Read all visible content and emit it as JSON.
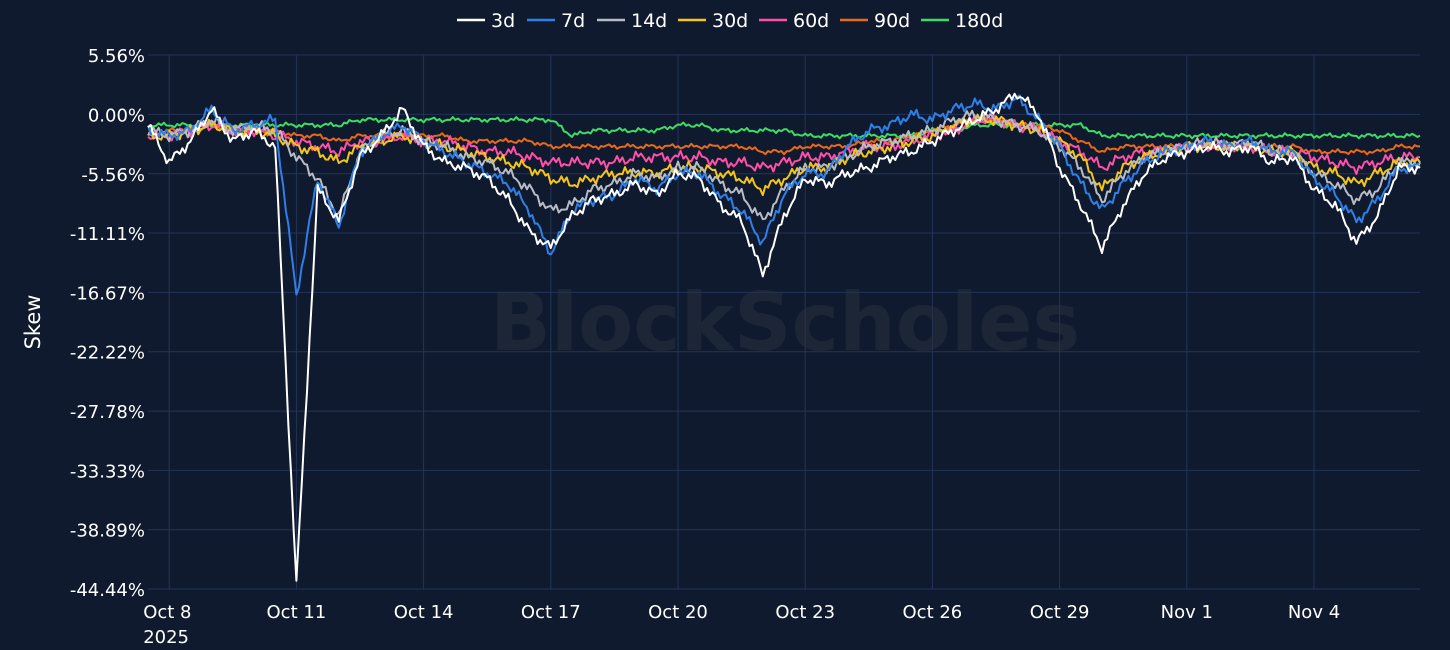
{
  "colors": {
    "background": "#0f1a2e",
    "grid": "#223459",
    "text": "#ffffff",
    "watermark": "#2a3040"
  },
  "watermark": "BlockScholes",
  "chart_data": {
    "type": "line",
    "title": "",
    "xlabel": "",
    "ylabel": "Skew",
    "legend_position": "top-center",
    "grid": true,
    "x_range": [
      "2025-10-07T12:00",
      "2025-11-06T12:00"
    ],
    "ylim": [
      -44.44,
      5.56
    ],
    "y_ticks": [
      5.56,
      0.0,
      -5.56,
      -11.11,
      -16.67,
      -22.22,
      -27.78,
      -33.33,
      -38.89,
      -44.44
    ],
    "y_tick_labels": [
      "5.56%",
      "0.00%",
      "-5.56%",
      "-11.11%",
      "-16.67%",
      "-22.22%",
      "-27.78%",
      "-33.33%",
      "-38.89%",
      "-44.44%"
    ],
    "x_ticks": [
      {
        "date": "2025-10-08",
        "label": "Oct 8",
        "sublabel": "2025"
      },
      {
        "date": "2025-10-11",
        "label": "Oct 11"
      },
      {
        "date": "2025-10-14",
        "label": "Oct 14"
      },
      {
        "date": "2025-10-17",
        "label": "Oct 17"
      },
      {
        "date": "2025-10-20",
        "label": "Oct 20"
      },
      {
        "date": "2025-10-23",
        "label": "Oct 23"
      },
      {
        "date": "2025-10-26",
        "label": "Oct 26"
      },
      {
        "date": "2025-10-29",
        "label": "Oct 29"
      },
      {
        "date": "2025-11-01",
        "label": "Nov 1"
      },
      {
        "date": "2025-11-04",
        "label": "Nov 4"
      }
    ],
    "x": [
      "2025-10-07T12:00",
      "2025-10-08T00:00",
      "2025-10-08T12:00",
      "2025-10-09T00:00",
      "2025-10-09T12:00",
      "2025-10-10T00:00",
      "2025-10-10T12:00",
      "2025-10-11T00:00",
      "2025-10-11T12:00",
      "2025-10-12T00:00",
      "2025-10-12T12:00",
      "2025-10-13T00:00",
      "2025-10-13T12:00",
      "2025-10-14T00:00",
      "2025-10-14T12:00",
      "2025-10-15T00:00",
      "2025-10-15T12:00",
      "2025-10-16T00:00",
      "2025-10-16T12:00",
      "2025-10-17T00:00",
      "2025-10-17T12:00",
      "2025-10-18T00:00",
      "2025-10-18T12:00",
      "2025-10-19T00:00",
      "2025-10-19T12:00",
      "2025-10-20T00:00",
      "2025-10-20T12:00",
      "2025-10-21T00:00",
      "2025-10-21T12:00",
      "2025-10-22T00:00",
      "2025-10-22T12:00",
      "2025-10-23T00:00",
      "2025-10-23T12:00",
      "2025-10-24T00:00",
      "2025-10-24T12:00",
      "2025-10-25T00:00",
      "2025-10-25T12:00",
      "2025-10-26T00:00",
      "2025-10-26T12:00",
      "2025-10-27T00:00",
      "2025-10-27T12:00",
      "2025-10-28T00:00",
      "2025-10-28T12:00",
      "2025-10-29T00:00",
      "2025-10-29T12:00",
      "2025-10-30T00:00",
      "2025-10-30T12:00",
      "2025-10-31T00:00",
      "2025-10-31T12:00",
      "2025-11-01T00:00",
      "2025-11-01T12:00",
      "2025-11-02T00:00",
      "2025-11-02T12:00",
      "2025-11-03T00:00",
      "2025-11-03T12:00",
      "2025-11-04T00:00",
      "2025-11-04T12:00",
      "2025-11-05T00:00",
      "2025-11-05T12:00",
      "2025-11-06T00:00",
      "2025-11-06T12:00"
    ],
    "series": [
      {
        "name": "3d",
        "color": "#ffffff",
        "values": [
          -1.0,
          -4.5,
          -2.5,
          0.5,
          -2.5,
          -1.5,
          -3.0,
          -44.0,
          -7.0,
          -10.0,
          -4.0,
          -2.0,
          0.5,
          -3.0,
          -4.5,
          -5.0,
          -6.0,
          -8.0,
          -11.0,
          -12.5,
          -9.5,
          -8.0,
          -7.5,
          -6.5,
          -7.5,
          -5.5,
          -6.0,
          -8.5,
          -10.0,
          -15.0,
          -9.5,
          -6.0,
          -6.5,
          -5.5,
          -5.0,
          -4.0,
          -3.5,
          -2.5,
          -1.5,
          -0.5,
          0.5,
          2.0,
          0.0,
          -5.0,
          -8.5,
          -12.5,
          -8.5,
          -5.5,
          -4.0,
          -3.5,
          -3.0,
          -3.5,
          -3.0,
          -4.5,
          -4.0,
          -7.0,
          -8.5,
          -12.0,
          -9.5,
          -5.0,
          -5.0
        ]
      },
      {
        "name": "7d",
        "color": "#2f7fe8",
        "values": [
          -1.5,
          -2.0,
          -1.5,
          0.5,
          -1.5,
          -1.0,
          -0.5,
          -17.0,
          -6.0,
          -10.5,
          -3.5,
          -2.0,
          -1.0,
          -2.5,
          -3.5,
          -4.5,
          -5.5,
          -6.5,
          -9.0,
          -13.0,
          -9.0,
          -8.0,
          -7.5,
          -6.0,
          -7.0,
          -5.5,
          -5.5,
          -7.5,
          -9.0,
          -12.0,
          -7.5,
          -5.5,
          -5.5,
          -3.0,
          -1.5,
          -1.0,
          0.0,
          -0.5,
          0.5,
          1.0,
          0.5,
          1.5,
          -0.5,
          -3.0,
          -6.5,
          -9.0,
          -6.5,
          -4.5,
          -3.5,
          -3.0,
          -2.5,
          -3.0,
          -2.5,
          -3.5,
          -3.5,
          -6.0,
          -7.5,
          -10.0,
          -8.0,
          -5.0,
          -5.0
        ]
      },
      {
        "name": "14d",
        "color": "#b8bcc4",
        "values": [
          -1.5,
          -2.0,
          -1.5,
          -0.5,
          -1.5,
          -1.0,
          -1.5,
          -4.0,
          -6.0,
          -9.5,
          -3.5,
          -2.0,
          -1.5,
          -2.5,
          -3.0,
          -4.0,
          -4.5,
          -5.5,
          -7.0,
          -9.0,
          -8.5,
          -7.0,
          -6.5,
          -5.5,
          -6.0,
          -5.0,
          -5.0,
          -6.5,
          -7.5,
          -10.0,
          -7.0,
          -5.0,
          -5.0,
          -4.0,
          -3.0,
          -2.5,
          -2.0,
          -1.5,
          -0.5,
          0.0,
          -0.5,
          -1.0,
          -1.5,
          -3.0,
          -5.0,
          -8.0,
          -5.5,
          -4.0,
          -3.5,
          -3.0,
          -2.5,
          -3.0,
          -2.5,
          -3.5,
          -3.5,
          -5.5,
          -6.5,
          -8.0,
          -7.0,
          -4.5,
          -4.5
        ]
      },
      {
        "name": "30d",
        "color": "#f5c518",
        "values": [
          -2.0,
          -2.0,
          -1.5,
          -1.0,
          -1.5,
          -1.5,
          -2.0,
          -3.0,
          -3.5,
          -4.5,
          -3.0,
          -2.5,
          -2.0,
          -2.5,
          -3.0,
          -3.5,
          -4.0,
          -4.5,
          -5.0,
          -6.0,
          -6.5,
          -6.0,
          -5.5,
          -5.5,
          -5.5,
          -5.0,
          -5.0,
          -5.5,
          -6.0,
          -7.0,
          -6.0,
          -5.0,
          -5.0,
          -4.0,
          -3.5,
          -3.0,
          -2.5,
          -2.0,
          -1.0,
          -0.5,
          -0.5,
          -1.0,
          -1.5,
          -2.5,
          -4.0,
          -7.0,
          -5.0,
          -4.0,
          -3.5,
          -3.0,
          -3.0,
          -3.0,
          -3.0,
          -3.5,
          -3.5,
          -5.0,
          -5.5,
          -6.5,
          -5.5,
          -4.5,
          -4.5
        ]
      },
      {
        "name": "60d",
        "color": "#ff4fa8",
        "values": [
          -2.0,
          -2.0,
          -1.5,
          -1.0,
          -1.5,
          -1.5,
          -2.0,
          -2.5,
          -3.0,
          -3.5,
          -2.5,
          -2.5,
          -2.0,
          -2.5,
          -2.5,
          -3.0,
          -3.5,
          -3.5,
          -4.0,
          -4.5,
          -4.5,
          -4.5,
          -4.5,
          -4.0,
          -4.0,
          -4.0,
          -4.0,
          -4.5,
          -4.5,
          -5.0,
          -4.5,
          -4.0,
          -4.0,
          -3.5,
          -3.0,
          -3.0,
          -2.5,
          -2.0,
          -1.5,
          -0.5,
          -0.5,
          -1.0,
          -1.5,
          -2.5,
          -3.5,
          -5.0,
          -4.0,
          -3.5,
          -3.5,
          -3.0,
          -3.0,
          -3.0,
          -3.0,
          -3.5,
          -3.5,
          -4.0,
          -4.5,
          -5.0,
          -4.5,
          -4.0,
          -4.0
        ]
      },
      {
        "name": "90d",
        "color": "#e8691a",
        "values": [
          -2.0,
          -1.5,
          -1.5,
          -1.0,
          -1.5,
          -1.5,
          -1.5,
          -2.0,
          -2.0,
          -2.5,
          -2.0,
          -2.0,
          -2.0,
          -2.0,
          -2.0,
          -2.5,
          -2.5,
          -2.5,
          -2.5,
          -3.0,
          -3.0,
          -3.0,
          -3.0,
          -3.0,
          -3.0,
          -3.0,
          -3.0,
          -3.0,
          -3.0,
          -3.5,
          -3.5,
          -3.0,
          -3.0,
          -3.0,
          -2.5,
          -2.5,
          -2.0,
          -1.5,
          -1.0,
          -0.5,
          -0.5,
          -1.0,
          -1.0,
          -1.5,
          -2.5,
          -3.5,
          -3.0,
          -3.0,
          -3.0,
          -3.0,
          -3.0,
          -3.0,
          -3.0,
          -3.0,
          -3.0,
          -3.5,
          -3.5,
          -3.5,
          -3.5,
          -3.0,
          -3.0
        ]
      },
      {
        "name": "180d",
        "color": "#3ddc64",
        "values": [
          -1.0,
          -1.0,
          -1.0,
          -1.0,
          -1.0,
          -1.0,
          -1.0,
          -1.0,
          -1.0,
          -1.0,
          -0.5,
          -0.5,
          -0.5,
          -0.5,
          -0.5,
          -0.5,
          -0.5,
          -0.5,
          -0.5,
          -0.5,
          -2.0,
          -1.5,
          -1.5,
          -1.5,
          -1.5,
          -1.0,
          -1.0,
          -1.5,
          -1.5,
          -1.5,
          -1.5,
          -2.0,
          -2.0,
          -2.0,
          -2.0,
          -2.0,
          -2.0,
          -1.5,
          -1.5,
          -1.0,
          -1.0,
          -1.0,
          -1.0,
          -1.0,
          -1.0,
          -2.0,
          -2.0,
          -2.0,
          -2.0,
          -2.0,
          -2.0,
          -2.0,
          -2.0,
          -2.0,
          -2.0,
          -2.0,
          -2.0,
          -2.0,
          -2.0,
          -2.0,
          -2.0
        ]
      }
    ]
  }
}
